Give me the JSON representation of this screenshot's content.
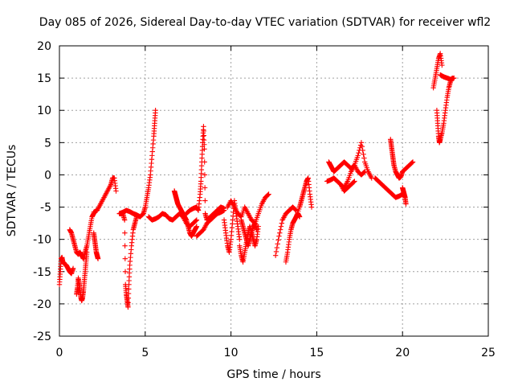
{
  "chart_data": {
    "type": "scatter",
    "title": "Day 085 of 2026, Sidereal Day-to-day VTEC variation (SDTVAR) for receiver wfl2",
    "xlabel": "GPS time / hours",
    "ylabel": "SDTVAR / TECUs",
    "xlim": [
      0,
      25
    ],
    "ylim": [
      -25,
      20
    ],
    "xticks": [
      "0",
      "5",
      "10",
      "15",
      "20",
      "25"
    ],
    "yticks": [
      "-25",
      "-20",
      "-15",
      "-10",
      "-5",
      "0",
      "5",
      "10",
      "15",
      "20"
    ],
    "grid": true,
    "marker": "plus",
    "color": "#ff0000",
    "series": [
      {
        "x": [
          0.0,
          0.05,
          0.1,
          0.15,
          0.2,
          0.3,
          0.4,
          0.5,
          0.6,
          0.7,
          0.8
        ],
        "values": [
          -17.0,
          -15.0,
          -13.0,
          -12.8,
          -13.5,
          -13.8,
          -14.0,
          -14.5,
          -15.0,
          -15.3,
          -14.5
        ]
      },
      {
        "x": [
          0.6,
          0.7,
          0.8,
          0.9,
          1.0,
          1.1,
          1.2,
          1.3,
          1.4,
          1.5,
          1.6,
          1.7,
          1.8,
          1.9,
          2.0
        ],
        "values": [
          -8.5,
          -9.0,
          -10.0,
          -11.0,
          -12.0,
          -12.3,
          -12.0,
          -12.5,
          -13.0,
          -12.0,
          -11.0,
          -9.5,
          -8.0,
          -6.5,
          -6.0
        ]
      },
      {
        "x": [
          1.0,
          1.05,
          1.1,
          1.15,
          1.2,
          1.25,
          1.3,
          1.35,
          1.4,
          1.45,
          1.5,
          1.55,
          1.6
        ],
        "values": [
          -18.5,
          -17.5,
          -16.0,
          -17.0,
          -18.0,
          -19.0,
          -19.5,
          -19.0,
          -18.0,
          -16.5,
          -15.0,
          -13.5,
          -12.0
        ]
      },
      {
        "x": [
          2.0,
          2.05,
          2.1,
          2.15,
          2.2,
          2.25
        ],
        "values": [
          -9.0,
          -10.0,
          -11.0,
          -12.0,
          -12.5,
          -13.0
        ]
      },
      {
        "x": [
          2.0,
          2.2,
          2.4,
          2.6,
          2.8,
          3.0,
          3.1,
          3.2,
          3.3
        ],
        "values": [
          -5.8,
          -5.5,
          -4.5,
          -3.5,
          -2.5,
          -1.5,
          -0.5,
          -0.5,
          -2.5
        ]
      },
      {
        "x": [
          3.5,
          3.6,
          3.7,
          3.8,
          3.85,
          3.9,
          3.95,
          4.0,
          4.05,
          4.1,
          4.2,
          4.3,
          4.4,
          4.5
        ],
        "values": [
          -6.0,
          -6.0,
          -6.0,
          -7.0,
          -17.0,
          -18.5,
          -19.5,
          -20.5,
          -17.0,
          -14.0,
          -11.0,
          -8.5,
          -7.5,
          -6.5
        ]
      },
      {
        "x": [
          3.5,
          3.7,
          3.9,
          4.1,
          4.3,
          4.5,
          4.7,
          4.9,
          5.0,
          5.1,
          5.2,
          5.3,
          5.4,
          5.5,
          5.55,
          5.6
        ],
        "values": [
          -6.0,
          -5.8,
          -5.5,
          -5.7,
          -6.0,
          -6.2,
          -6.5,
          -6.0,
          -5.0,
          -3.5,
          -2.0,
          0.0,
          3.0,
          6.0,
          8.0,
          10.0
        ]
      },
      {
        "x": [
          5.2,
          5.4,
          5.6,
          5.8,
          6.0,
          6.2,
          6.4,
          6.6,
          6.8,
          7.0,
          7.2,
          7.4,
          7.6,
          7.8,
          8.0
        ],
        "values": [
          -6.5,
          -7.0,
          -6.8,
          -6.5,
          -6.0,
          -6.2,
          -6.8,
          -7.0,
          -6.5,
          -6.0,
          -6.5,
          -7.5,
          -8.0,
          -7.5,
          -7.0
        ]
      },
      {
        "x": [
          6.7,
          6.75,
          6.8,
          6.85,
          6.9,
          7.0,
          7.1,
          7.2,
          7.3,
          7.4,
          7.5,
          7.6,
          7.7,
          7.8,
          7.9,
          8.0
        ],
        "values": [
          -2.5,
          -3.0,
          -3.5,
          -4.0,
          -4.5,
          -5.0,
          -5.5,
          -6.0,
          -6.5,
          -7.0,
          -8.0,
          -9.0,
          -9.5,
          -9.0,
          -8.5,
          -8.0
        ]
      },
      {
        "x": [
          7.4,
          7.6,
          7.8,
          8.0,
          8.1,
          8.2,
          8.25,
          8.3,
          8.35,
          8.4,
          8.45,
          8.5,
          8.6,
          8.8,
          9.0,
          9.2,
          9.4,
          9.6
        ],
        "values": [
          -6.0,
          -5.5,
          -5.2,
          -5.0,
          -5.5,
          -3.0,
          -1.0,
          2.0,
          5.0,
          7.5,
          4.0,
          -6.0,
          -7.0,
          -6.5,
          -6.0,
          -5.5,
          -5.0,
          -5.2
        ]
      },
      {
        "x": [
          8.0,
          8.2,
          8.4,
          8.6,
          8.8,
          9.0,
          9.2,
          9.4,
          9.6
        ],
        "values": [
          -9.5,
          -9.0,
          -8.5,
          -7.5,
          -7.0,
          -6.5,
          -6.0,
          -5.8,
          -5.5
        ]
      },
      {
        "x": [
          9.6,
          9.7,
          9.8,
          9.9,
          10.0,
          10.1,
          10.2,
          10.3,
          10.4,
          10.5
        ],
        "values": [
          -7.0,
          -9.0,
          -11.0,
          -12.0,
          -10.0,
          -7.0,
          -4.0,
          -6.0,
          -8.0,
          -10.0
        ]
      },
      {
        "x": [
          9.8,
          10.0,
          10.2,
          10.4,
          10.6,
          10.8,
          11.0,
          11.2,
          11.4,
          11.6,
          11.8,
          12.0,
          12.2
        ],
        "values": [
          -5.0,
          -4.0,
          -5.0,
          -6.0,
          -6.5,
          -5.0,
          -6.0,
          -7.0,
          -7.5,
          -6.0,
          -4.5,
          -3.5,
          -3.0
        ]
      },
      {
        "x": [
          10.5,
          10.6,
          10.7,
          10.8,
          10.9,
          11.0,
          11.1,
          11.2,
          11.3,
          11.4,
          11.5,
          11.6
        ],
        "values": [
          -11.0,
          -12.5,
          -13.5,
          -12.0,
          -10.5,
          -9.0,
          -8.0,
          -9.0,
          -10.0,
          -11.0,
          -10.0,
          -8.0
        ]
      },
      {
        "x": [
          10.6,
          10.7,
          10.8,
          10.9,
          11.0,
          11.1,
          11.2,
          11.3,
          11.4,
          11.5
        ],
        "values": [
          -7.0,
          -8.0,
          -9.0,
          -10.0,
          -11.0,
          -10.0,
          -9.0,
          -8.0,
          -7.5,
          -8.5
        ]
      },
      {
        "x": [
          12.6,
          12.8,
          13.0,
          13.2,
          13.4,
          13.6,
          13.8
        ],
        "values": [
          -12.5,
          -9.5,
          -7.0,
          -6.0,
          -5.5,
          -5.0,
          -5.5
        ]
      },
      {
        "x": [
          13.2,
          13.3,
          13.4,
          13.5,
          13.6,
          13.7,
          13.8,
          13.9,
          14.0
        ],
        "values": [
          -13.5,
          -12.0,
          -10.0,
          -8.5,
          -7.5,
          -7.0,
          -6.5,
          -6.0,
          -6.5
        ]
      },
      {
        "x": [
          13.8,
          14.0,
          14.1,
          14.2,
          14.3,
          14.4,
          14.5,
          14.6,
          14.7
        ],
        "values": [
          -6.5,
          -5.0,
          -4.0,
          -3.0,
          -2.0,
          -1.0,
          -0.5,
          -3.0,
          -5.0
        ]
      },
      {
        "x": [
          15.6,
          15.8,
          16.0,
          16.2,
          16.4,
          16.6,
          16.8,
          17.0,
          17.2,
          17.4,
          17.6,
          17.8,
          18.0,
          18.2
        ],
        "values": [
          -1.0,
          -0.8,
          -0.5,
          -1.0,
          -1.5,
          -2.0,
          -1.0,
          0.5,
          1.5,
          3.0,
          5.0,
          2.0,
          0.5,
          -0.5
        ]
      },
      {
        "x": [
          15.7,
          15.8,
          15.9,
          16.0,
          16.2,
          16.4,
          16.6,
          16.8,
          17.0,
          17.2,
          17.4,
          17.6,
          17.8
        ],
        "values": [
          2.0,
          1.5,
          1.0,
          0.5,
          1.0,
          1.5,
          2.0,
          1.5,
          1.0,
          1.5,
          0.5,
          0.0,
          0.5
        ]
      },
      {
        "x": [
          16.4,
          16.6,
          16.8,
          17.0,
          17.2
        ],
        "values": [
          -1.5,
          -2.5,
          -2.0,
          -1.5,
          -1.0
        ]
      },
      {
        "x": [
          18.4,
          18.6,
          18.8,
          19.0,
          19.2,
          19.4,
          19.6,
          19.8,
          20.0
        ],
        "values": [
          -0.5,
          -1.0,
          -1.5,
          -2.0,
          -2.5,
          -3.0,
          -3.5,
          -3.3,
          -3.0
        ]
      },
      {
        "x": [
          19.3,
          19.35,
          19.4,
          19.45,
          19.5,
          19.6,
          19.7,
          19.8,
          19.9,
          20.0,
          20.2,
          20.4,
          20.6
        ],
        "values": [
          5.5,
          4.5,
          3.5,
          2.5,
          1.5,
          0.5,
          0.0,
          -0.5,
          -0.3,
          0.5,
          1.0,
          1.5,
          2.0
        ]
      },
      {
        "x": [
          20.0,
          20.05,
          20.1,
          20.15,
          20.2
        ],
        "values": [
          -2.0,
          -2.5,
          -3.0,
          -3.5,
          -4.5
        ]
      },
      {
        "x": [
          21.8,
          21.9,
          22.0,
          22.1,
          22.2,
          22.3
        ],
        "values": [
          13.5,
          15.0,
          16.5,
          18.0,
          18.8,
          17.0
        ]
      },
      {
        "x": [
          22.0,
          22.05,
          22.1,
          22.15,
          22.2,
          22.3,
          22.4,
          22.5,
          22.6,
          22.7,
          22.8,
          22.9
        ],
        "values": [
          10.0,
          8.0,
          6.0,
          5.0,
          5.5,
          6.5,
          8.0,
          10.0,
          12.0,
          13.5,
          14.5,
          15.0
        ]
      },
      {
        "x": [
          22.2,
          22.4,
          22.6,
          22.8,
          23.0
        ],
        "values": [
          15.5,
          15.2,
          15.0,
          14.8,
          15.0
        ]
      }
    ]
  }
}
